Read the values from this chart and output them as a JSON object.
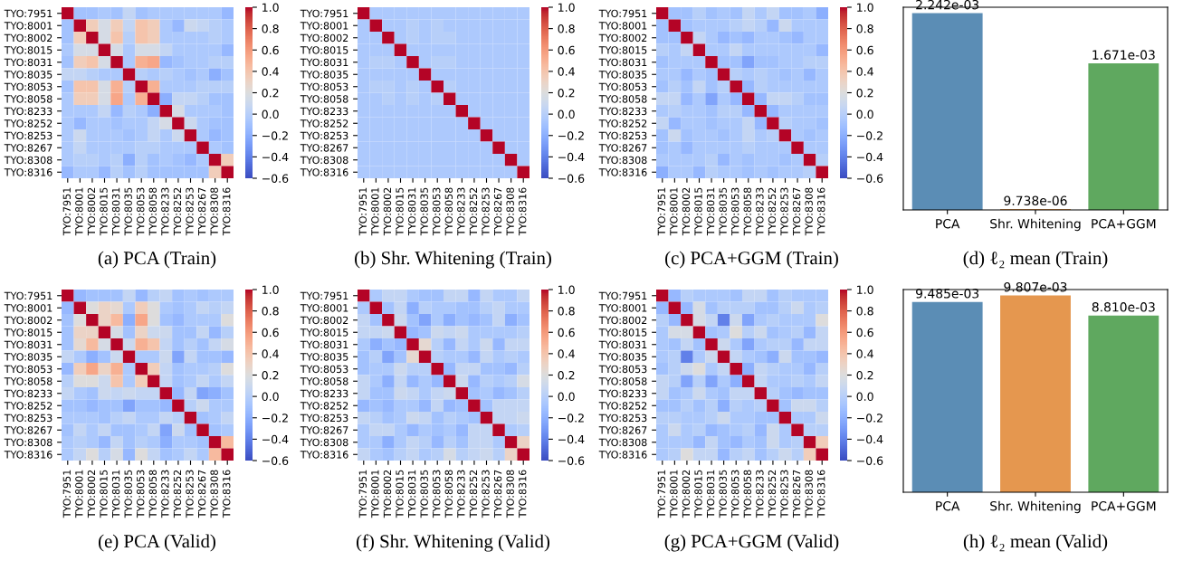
{
  "chart_data": [
    {
      "type": "heatmap",
      "title": "(a) PCA (Train)",
      "categories": [
        "TYO:7951",
        "TYO:8001",
        "TYO:8002",
        "TYO:8015",
        "TYO:8031",
        "TYO:8035",
        "TYO:8053",
        "TYO:8058",
        "TYO:8233",
        "TYO:8252",
        "TYO:8253",
        "TYO:8267",
        "TYO:8308",
        "TYO:8316"
      ],
      "y_categories": [
        "TYO:7951",
        "TYO:8001",
        "TYO:8002",
        "TYO:8015",
        "TYO:8031",
        "TYO:8035",
        "TYO:8053",
        "TYO:8058",
        "TYO:8233",
        "TYO:8252",
        "TYO:8253",
        "TYO:8267",
        "TYO:8308",
        "TYO:8316"
      ],
      "clim": [
        -0.6,
        1
      ],
      "cticks": [
        {
          "value": -0.6,
          "label": "−0.6"
        },
        {
          "value": -0.4,
          "label": "−0.4"
        },
        {
          "value": -0.2,
          "label": "−0.2"
        },
        {
          "value": 0,
          "label": "0.0"
        },
        0.2,
        0.4,
        0.6,
        0.8,
        {
          "value": 1,
          "label": "1.0"
        }
      ],
      "cells": [
        [
          1,
          -0.1,
          -0.1,
          -0.05,
          -0.1,
          0.05,
          -0.1,
          -0.05,
          -0.05,
          -0.05,
          -0.05,
          -0.05,
          -0.05,
          -0.15
        ],
        [
          -0.1,
          1,
          0.35,
          0.15,
          0.35,
          0.05,
          0.4,
          0.35,
          -0.05,
          -0.15,
          0.1,
          0.05,
          0,
          -0.05
        ],
        [
          -0.1,
          0.35,
          1,
          0.15,
          0.4,
          0,
          0.4,
          0.35,
          -0.05,
          -0.05,
          -0.05,
          -0.05,
          0,
          -0.05
        ],
        [
          -0.05,
          0.15,
          0.15,
          1,
          0.15,
          -0.05,
          0.15,
          0.15,
          0.05,
          -0.05,
          -0.05,
          -0.05,
          -0.05,
          -0.15
        ],
        [
          -0.1,
          0.35,
          0.4,
          0.15,
          1,
          -0.05,
          0.5,
          0.55,
          -0.15,
          -0.1,
          -0.05,
          -0.05,
          0,
          0
        ],
        [
          0.05,
          0.05,
          0,
          -0.05,
          -0.05,
          1,
          0,
          -0.05,
          0,
          -0.05,
          -0.1,
          -0.05,
          -0.2,
          -0.1
        ],
        [
          -0.1,
          0.4,
          0.4,
          0.15,
          0.5,
          0,
          1,
          0.5,
          -0.05,
          -0.05,
          -0.05,
          0,
          0,
          0
        ],
        [
          -0.05,
          0.35,
          0.35,
          0.15,
          0.55,
          -0.05,
          0.5,
          1,
          -0.2,
          0.05,
          0.05,
          0,
          -0.1,
          -0.1
        ],
        [
          -0.05,
          -0.05,
          -0.05,
          0.05,
          -0.15,
          0,
          -0.05,
          -0.2,
          1,
          0.15,
          -0.05,
          -0.05,
          -0.05,
          -0.1
        ],
        [
          -0.05,
          -0.15,
          -0.05,
          -0.05,
          -0.1,
          -0.05,
          -0.05,
          0.05,
          0.15,
          1,
          0.1,
          -0.05,
          -0.1,
          -0.1
        ],
        [
          -0.05,
          0.1,
          -0.05,
          -0.05,
          -0.05,
          -0.1,
          -0.05,
          0.05,
          -0.05,
          0.1,
          1,
          -0.05,
          -0.15,
          -0.1
        ],
        [
          -0.05,
          0.05,
          -0.05,
          -0.05,
          -0.05,
          -0.05,
          0,
          0,
          -0.05,
          -0.05,
          -0.05,
          1,
          -0.05,
          -0.1
        ],
        [
          -0.05,
          0,
          0,
          -0.05,
          0,
          -0.2,
          0,
          -0.1,
          -0.05,
          -0.1,
          -0.15,
          -0.05,
          1,
          0.35
        ],
        [
          -0.15,
          -0.05,
          -0.05,
          -0.15,
          0,
          -0.1,
          0,
          -0.1,
          -0.1,
          -0.1,
          -0.1,
          -0.1,
          0.35,
          1
        ]
      ]
    },
    {
      "type": "heatmap",
      "title": "(b) Shr. Whitening (Train)",
      "categories": [
        "TYO:7951",
        "TYO:8001",
        "TYO:8002",
        "TYO:8015",
        "TYO:8031",
        "TYO:8035",
        "TYO:8053",
        "TYO:8058",
        "TYO:8233",
        "TYO:8252",
        "TYO:8253",
        "TYO:8267",
        "TYO:8308",
        "TYO:8316"
      ],
      "y_categories": [
        "TYO:7951",
        "TYO:8001",
        "TYO:8002",
        "TYO:8015",
        "TYO:8031",
        "TYO:8035",
        "TYO:8053",
        "TYO:8058",
        "TYO:8233",
        "TYO:8252",
        "TYO:8253",
        "TYO:8267",
        "TYO:8308",
        "TYO:8316"
      ],
      "clim": [
        -0.6,
        1
      ],
      "cticks": [
        {
          "value": -0.6,
          "label": "−0.6"
        },
        {
          "value": -0.4,
          "label": "−0.4"
        },
        {
          "value": -0.2,
          "label": "−0.2"
        },
        {
          "value": 0,
          "label": "0.0"
        },
        0.2,
        0.4,
        0.6,
        0.8,
        {
          "value": 1,
          "label": "1.0"
        }
      ],
      "cells": [
        [
          1,
          -0.05,
          -0.05,
          -0.05,
          -0.05,
          -0.05,
          -0.05,
          -0.05,
          -0.05,
          -0.05,
          -0.05,
          -0.05,
          -0.05,
          -0.05
        ],
        [
          -0.05,
          1,
          -0.05,
          -0.05,
          0,
          -0.05,
          0,
          -0.05,
          -0.05,
          -0.05,
          -0.05,
          -0.05,
          -0.05,
          -0.05
        ],
        [
          -0.05,
          -0.05,
          1,
          -0.05,
          0,
          -0.05,
          0,
          0,
          -0.05,
          -0.05,
          -0.05,
          -0.05,
          -0.05,
          -0.05
        ],
        [
          -0.05,
          -0.05,
          -0.05,
          1,
          -0.05,
          -0.05,
          -0.05,
          -0.05,
          -0.05,
          -0.05,
          -0.05,
          -0.05,
          -0.05,
          -0.05
        ],
        [
          -0.05,
          0,
          0,
          -0.05,
          1,
          -0.05,
          0,
          0,
          -0.05,
          -0.05,
          -0.05,
          -0.05,
          -0.05,
          -0.05
        ],
        [
          -0.05,
          -0.05,
          -0.05,
          -0.05,
          -0.05,
          1,
          -0.05,
          -0.05,
          -0.05,
          -0.05,
          -0.05,
          -0.05,
          -0.05,
          -0.05
        ],
        [
          -0.05,
          0,
          0,
          -0.05,
          0,
          -0.05,
          1,
          0,
          -0.05,
          -0.05,
          -0.05,
          -0.05,
          -0.05,
          -0.05
        ],
        [
          -0.05,
          -0.05,
          0,
          -0.05,
          0,
          -0.05,
          0,
          1,
          -0.05,
          -0.05,
          -0.05,
          -0.05,
          -0.05,
          -0.05
        ],
        [
          -0.05,
          -0.05,
          -0.05,
          -0.05,
          -0.05,
          -0.05,
          -0.05,
          -0.05,
          1,
          -0.05,
          -0.05,
          -0.05,
          -0.05,
          -0.05
        ],
        [
          -0.05,
          -0.05,
          -0.05,
          -0.05,
          -0.05,
          -0.05,
          -0.05,
          -0.05,
          -0.05,
          1,
          -0.05,
          -0.05,
          -0.05,
          -0.05
        ],
        [
          -0.05,
          -0.05,
          -0.05,
          -0.05,
          -0.05,
          -0.05,
          -0.05,
          -0.05,
          -0.05,
          -0.05,
          1,
          -0.05,
          -0.05,
          -0.05
        ],
        [
          -0.05,
          -0.05,
          -0.05,
          -0.05,
          -0.05,
          -0.05,
          -0.05,
          -0.05,
          -0.05,
          -0.05,
          -0.05,
          1,
          -0.05,
          -0.05
        ],
        [
          -0.05,
          -0.05,
          -0.05,
          -0.05,
          -0.05,
          -0.05,
          -0.05,
          -0.05,
          -0.05,
          -0.05,
          -0.05,
          -0.05,
          1,
          -0.05
        ],
        [
          -0.05,
          -0.05,
          -0.05,
          -0.05,
          -0.05,
          -0.05,
          -0.05,
          -0.05,
          -0.05,
          -0.05,
          -0.05,
          -0.05,
          -0.05,
          1
        ]
      ]
    },
    {
      "type": "heatmap",
      "title": "(c) PCA+GGM (Train)",
      "categories": [
        "TYO:7951",
        "TYO:8001",
        "TYO:8002",
        "TYO:8015",
        "TYO:8031",
        "TYO:8035",
        "TYO:8053",
        "TYO:8058",
        "TYO:8233",
        "TYO:8252",
        "TYO:8253",
        "TYO:8267",
        "TYO:8308",
        "TYO:8316"
      ],
      "y_categories": [
        "TYO:7951",
        "TYO:8001",
        "TYO:8002",
        "TYO:8015",
        "TYO:8031",
        "TYO:8035",
        "TYO:8053",
        "TYO:8058",
        "TYO:8233",
        "TYO:8252",
        "TYO:8253",
        "TYO:8267",
        "TYO:8308",
        "TYO:8316"
      ],
      "clim": [
        -0.6,
        1
      ],
      "cticks": [
        {
          "value": -0.6,
          "label": "−0.6"
        },
        {
          "value": -0.4,
          "label": "−0.4"
        },
        {
          "value": -0.2,
          "label": "−0.2"
        },
        {
          "value": 0,
          "label": "0.0"
        },
        0.2,
        0.4,
        0.6,
        0.8,
        {
          "value": 1,
          "label": "1.0"
        }
      ],
      "cells": [
        [
          1,
          -0.1,
          -0.1,
          0,
          -0.1,
          -0.05,
          -0.1,
          0.05,
          -0.05,
          0.05,
          -0.1,
          -0.1,
          -0.05,
          -0.2
        ],
        [
          -0.1,
          1,
          -0.1,
          -0.05,
          -0.05,
          -0.05,
          0,
          0.05,
          0,
          -0.15,
          0.1,
          -0.05,
          -0.05,
          -0.05
        ],
        [
          -0.1,
          -0.1,
          1,
          0.05,
          -0.05,
          -0.15,
          -0.1,
          -0.15,
          -0.05,
          -0.05,
          -0.1,
          -0.15,
          -0.05,
          -0.05
        ],
        [
          0,
          -0.05,
          0.05,
          1,
          -0.05,
          -0.05,
          0.05,
          -0.05,
          -0.05,
          -0.05,
          -0.05,
          -0.05,
          -0.05,
          -0.15
        ],
        [
          -0.1,
          -0.05,
          -0.05,
          -0.05,
          1,
          -0.1,
          -0.1,
          -0.25,
          -0.1,
          -0.1,
          -0.05,
          -0.05,
          0,
          0
        ],
        [
          -0.05,
          -0.05,
          -0.15,
          -0.05,
          -0.1,
          1,
          0,
          -0.05,
          0,
          -0.05,
          -0.1,
          -0.05,
          -0.15,
          -0.05
        ],
        [
          -0.1,
          0,
          -0.1,
          0.05,
          -0.1,
          0,
          1,
          -0.15,
          0,
          -0.05,
          -0.05,
          -0.05,
          -0.05,
          -0.05
        ],
        [
          0.05,
          0.05,
          -0.15,
          -0.05,
          -0.25,
          -0.05,
          -0.15,
          1,
          -0.15,
          0.05,
          0.05,
          0,
          -0.1,
          -0.1
        ],
        [
          -0.05,
          0,
          -0.05,
          -0.05,
          -0.1,
          0,
          0,
          -0.15,
          1,
          -0.15,
          -0.05,
          -0.05,
          -0.05,
          -0.05
        ],
        [
          0.05,
          -0.15,
          -0.05,
          -0.05,
          -0.1,
          -0.05,
          -0.05,
          0.05,
          -0.15,
          1,
          0,
          -0.05,
          -0.05,
          -0.1
        ],
        [
          -0.1,
          0.1,
          -0.1,
          -0.05,
          -0.05,
          -0.1,
          -0.05,
          0.05,
          -0.05,
          0,
          1,
          -0.05,
          -0.1,
          -0.05
        ],
        [
          -0.1,
          -0.05,
          -0.15,
          -0.05,
          -0.05,
          -0.05,
          -0.05,
          0,
          -0.05,
          -0.05,
          -0.05,
          1,
          -0.05,
          -0.05
        ],
        [
          -0.05,
          -0.05,
          -0.05,
          -0.05,
          0,
          -0.15,
          -0.05,
          -0.1,
          -0.05,
          -0.05,
          -0.1,
          -0.05,
          1,
          0
        ],
        [
          -0.2,
          -0.05,
          -0.05,
          -0.15,
          0,
          -0.05,
          -0.05,
          -0.1,
          -0.05,
          -0.1,
          -0.05,
          -0.05,
          0,
          1
        ]
      ]
    },
    {
      "type": "bar",
      "title": "(d) ℓ₂ mean (Train)",
      "categories": [
        "PCA",
        "Shr. Whitening",
        "PCA+GGM"
      ],
      "values": [
        0.002242,
        9.738e-06,
        0.001671
      ],
      "value_labels": [
        "2.242e-03",
        "9.738e-06",
        "1.671e-03"
      ],
      "colors": [
        "#5b8db5",
        "#e5974f",
        "#5fa85f"
      ]
    },
    {
      "type": "heatmap",
      "title": "(e) PCA (Valid)",
      "categories": [
        "TYO:7951",
        "TYO:8001",
        "TYO:8002",
        "TYO:8015",
        "TYO:8031",
        "TYO:8035",
        "TYO:8053",
        "TYO:8058",
        "TYO:8233",
        "TYO:8252",
        "TYO:8253",
        "TYO:8267",
        "TYO:8308",
        "TYO:8316"
      ],
      "y_categories": [
        "TYO:7951",
        "TYO:8001",
        "TYO:8002",
        "TYO:8015",
        "TYO:8031",
        "TYO:8035",
        "TYO:8053",
        "TYO:8058",
        "TYO:8233",
        "TYO:8252",
        "TYO:8253",
        "TYO:8267",
        "TYO:8308",
        "TYO:8316"
      ],
      "clim": [
        -0.6,
        1
      ],
      "cticks": [
        {
          "value": -0.6,
          "label": "−0.6"
        },
        {
          "value": -0.4,
          "label": "−0.4"
        },
        {
          "value": -0.2,
          "label": "−0.2"
        },
        {
          "value": 0,
          "label": "0.0"
        },
        0.2,
        0.4,
        0.6,
        0.8,
        {
          "value": 1,
          "label": "1.0"
        }
      ],
      "cells": [
        [
          1,
          -0.15,
          -0.1,
          -0.1,
          -0.1,
          0.05,
          -0.15,
          0,
          0.05,
          -0.1,
          -0.05,
          -0.1,
          -0.05,
          -0.05
        ],
        [
          -0.15,
          1,
          0.2,
          0.3,
          0.25,
          -0.05,
          0.35,
          0.2,
          -0.05,
          -0.1,
          -0.05,
          0.05,
          0,
          0.05
        ],
        [
          -0.1,
          0.2,
          1,
          0.3,
          0.45,
          -0.2,
          0.55,
          0.2,
          -0.1,
          -0.15,
          -0.05,
          -0.05,
          -0.05,
          0.2
        ],
        [
          -0.1,
          0.3,
          0.3,
          1,
          0.15,
          -0.1,
          0.3,
          0.1,
          0.1,
          -0.1,
          -0.1,
          0.05,
          -0.15,
          0
        ],
        [
          -0.1,
          0.25,
          0.45,
          0.15,
          1,
          0.1,
          0.5,
          0.4,
          0.05,
          -0.1,
          0,
          -0.1,
          0.05,
          0.15
        ],
        [
          0.05,
          -0.05,
          -0.2,
          -0.1,
          0.1,
          1,
          -0.05,
          -0.05,
          0.1,
          -0.25,
          0.05,
          -0.1,
          -0.1,
          -0.15
        ],
        [
          -0.15,
          0.35,
          0.55,
          0.3,
          0.5,
          -0.05,
          1,
          0.35,
          0.05,
          -0.1,
          -0.05,
          -0.05,
          0,
          0.2
        ],
        [
          0,
          0.2,
          0.2,
          0.1,
          0.4,
          -0.05,
          0.35,
          1,
          0.05,
          -0.1,
          -0.05,
          0.05,
          -0.05,
          0.05
        ],
        [
          0.05,
          -0.05,
          -0.1,
          0.1,
          0.05,
          0.1,
          0.05,
          0.05,
          1,
          -0.15,
          0.05,
          -0.25,
          -0.2,
          -0.1
        ],
        [
          -0.1,
          -0.1,
          -0.15,
          -0.1,
          -0.1,
          -0.25,
          -0.1,
          -0.1,
          -0.15,
          1,
          0,
          0.1,
          -0.05,
          -0.05
        ],
        [
          -0.05,
          -0.05,
          -0.05,
          -0.1,
          0,
          0.05,
          -0.05,
          -0.05,
          0.05,
          0,
          1,
          -0.1,
          -0.05,
          0.05
        ],
        [
          -0.1,
          0.05,
          -0.05,
          0.05,
          -0.1,
          -0.1,
          -0.05,
          0.05,
          -0.25,
          0.1,
          -0.1,
          1,
          -0.1,
          -0.05
        ],
        [
          -0.05,
          0,
          -0.05,
          -0.15,
          0.05,
          -0.1,
          0,
          -0.05,
          -0.2,
          -0.05,
          -0.05,
          -0.1,
          1,
          0.45
        ],
        [
          -0.05,
          0.05,
          0.2,
          0,
          0.15,
          -0.15,
          0.2,
          0.05,
          -0.1,
          -0.05,
          0.05,
          -0.05,
          0.45,
          1
        ]
      ]
    },
    {
      "type": "heatmap",
      "title": "(f) Shr. Whitening (Valid)",
      "categories": [
        "TYO:7951",
        "TYO:8001",
        "TYO:8002",
        "TYO:8015",
        "TYO:8031",
        "TYO:8035",
        "TYO:8053",
        "TYO:8058",
        "TYO:8233",
        "TYO:8252",
        "TYO:8253",
        "TYO:8267",
        "TYO:8308",
        "TYO:8316"
      ],
      "y_categories": [
        "TYO:7951",
        "TYO:8001",
        "TYO:8002",
        "TYO:8015",
        "TYO:8031",
        "TYO:8035",
        "TYO:8053",
        "TYO:8058",
        "TYO:8233",
        "TYO:8252",
        "TYO:8253",
        "TYO:8267",
        "TYO:8308",
        "TYO:8316"
      ],
      "clim": [
        -0.6,
        1
      ],
      "cticks": [
        {
          "value": -0.6,
          "label": "−0.6"
        },
        {
          "value": -0.4,
          "label": "−0.4"
        },
        {
          "value": -0.2,
          "label": "−0.2"
        },
        {
          "value": 0,
          "label": "0.0"
        },
        0.2,
        0.4,
        0.6,
        0.8,
        {
          "value": 1,
          "label": "1.0"
        }
      ],
      "cells": [
        [
          1,
          -0.05,
          0.05,
          0.05,
          -0.05,
          -0.1,
          -0.1,
          0.05,
          0.05,
          -0.15,
          0.05,
          -0.05,
          -0.05,
          0.05
        ],
        [
          -0.05,
          1,
          -0.1,
          0.05,
          -0.2,
          0,
          -0.05,
          -0.05,
          -0.1,
          -0.1,
          0,
          0.05,
          -0.05,
          -0.05
        ],
        [
          0.05,
          -0.1,
          1,
          0.1,
          -0.1,
          -0.25,
          -0.05,
          -0.2,
          -0.1,
          -0.15,
          -0.1,
          0.05,
          -0.2,
          -0.1
        ],
        [
          0.05,
          0.05,
          0.1,
          1,
          -0.15,
          -0.1,
          0.1,
          0.05,
          0.1,
          -0.05,
          -0.05,
          -0.05,
          -0.05,
          0
        ],
        [
          -0.05,
          -0.2,
          -0.1,
          -0.15,
          1,
          0.25,
          0,
          -0.15,
          0.05,
          -0.05,
          0.1,
          -0.15,
          0.05,
          0.05
        ],
        [
          -0.1,
          0,
          -0.25,
          -0.1,
          0.25,
          1,
          0,
          -0.05,
          -0.05,
          -0.15,
          0.05,
          -0.05,
          0,
          -0.05
        ],
        [
          -0.1,
          -0.05,
          -0.05,
          0.1,
          0,
          0,
          1,
          -0.15,
          0.05,
          0.05,
          -0.1,
          -0.1,
          -0.15,
          0
        ],
        [
          0.05,
          -0.05,
          -0.2,
          0.05,
          -0.15,
          -0.05,
          -0.15,
          1,
          0.1,
          -0.15,
          0,
          -0.05,
          0,
          0.15
        ],
        [
          0.05,
          -0.1,
          -0.1,
          0.1,
          0.05,
          -0.05,
          0.05,
          0.1,
          1,
          -0.1,
          -0.05,
          -0.15,
          -0.1,
          0
        ],
        [
          -0.15,
          -0.1,
          -0.15,
          -0.05,
          -0.05,
          -0.15,
          0.05,
          -0.15,
          -0.1,
          1,
          -0.1,
          0.05,
          0.05,
          0.05
        ],
        [
          0.05,
          0,
          -0.1,
          -0.05,
          0.1,
          0.05,
          -0.1,
          0,
          -0.05,
          -0.1,
          1,
          0.05,
          0.05,
          0.1
        ],
        [
          -0.05,
          0.05,
          0.05,
          -0.05,
          -0.15,
          -0.05,
          -0.1,
          -0.05,
          -0.15,
          0.05,
          0.05,
          1,
          -0.05,
          0
        ],
        [
          -0.05,
          -0.05,
          -0.2,
          -0.05,
          0.05,
          0,
          -0.15,
          0,
          -0.1,
          0.05,
          0.05,
          -0.05,
          1,
          0.3
        ],
        [
          0.05,
          -0.05,
          -0.1,
          0,
          0.05,
          -0.05,
          0,
          0.15,
          0,
          0.05,
          0.1,
          0,
          0.3,
          1
        ]
      ]
    },
    {
      "type": "heatmap",
      "title": "(g) PCA+GGM (Valid)",
      "categories": [
        "TYO:7951",
        "TYO:8001",
        "TYO:8002",
        "TYO:8015",
        "TYO:8031",
        "TYO:8035",
        "TYO:8053",
        "TYO:8058",
        "TYO:8233",
        "TYO:8252",
        "TYO:8253",
        "TYO:8267",
        "TYO:8308",
        "TYO:8316"
      ],
      "y_categories": [
        "TYO:7951",
        "TYO:8001",
        "TYO:8002",
        "TYO:8015",
        "TYO:8031",
        "TYO:8035",
        "TYO:8053",
        "TYO:8058",
        "TYO:8233",
        "TYO:8252",
        "TYO:8253",
        "TYO:8267",
        "TYO:8308",
        "TYO:8316"
      ],
      "clim": [
        -0.6,
        1
      ],
      "cticks": [
        {
          "value": -0.6,
          "label": "−0.6"
        },
        {
          "value": -0.4,
          "label": "−0.4"
        },
        {
          "value": -0.2,
          "label": "−0.2"
        },
        {
          "value": 0,
          "label": "0.0"
        },
        0.2,
        0.4,
        0.6,
        0.8,
        {
          "value": 1,
          "label": "1.0"
        }
      ],
      "cells": [
        [
          1,
          -0.15,
          0,
          -0.05,
          -0.05,
          -0.05,
          -0.1,
          0.05,
          0.05,
          -0.1,
          0,
          -0.05,
          -0.05,
          -0.05
        ],
        [
          -0.15,
          1,
          -0.15,
          0.15,
          -0.1,
          0,
          0,
          0,
          -0.1,
          -0.1,
          0,
          0.1,
          -0.05,
          0
        ],
        [
          0,
          -0.15,
          1,
          0.15,
          0.05,
          -0.4,
          0.1,
          -0.25,
          -0.05,
          0,
          -0.05,
          -0.05,
          -0.05,
          0.2
        ],
        [
          -0.05,
          0.15,
          0.15,
          1,
          -0.1,
          -0.05,
          0.2,
          0,
          0.1,
          -0.1,
          -0.05,
          0,
          -0.15,
          0.05
        ],
        [
          -0.05,
          -0.1,
          0.05,
          -0.1,
          1,
          0.1,
          -0.05,
          -0.25,
          -0.05,
          0,
          0,
          -0.15,
          0.05,
          0.05
        ],
        [
          -0.05,
          0,
          -0.4,
          -0.05,
          0.1,
          1,
          0.05,
          -0.05,
          -0.1,
          -0.2,
          0.1,
          -0.1,
          -0.1,
          -0.15
        ],
        [
          -0.1,
          0,
          0.1,
          0.2,
          -0.05,
          0.05,
          1,
          -0.2,
          0.05,
          0,
          -0.05,
          -0.05,
          -0.15,
          0
        ],
        [
          0.05,
          0,
          -0.25,
          0,
          -0.25,
          -0.05,
          -0.2,
          1,
          0.05,
          -0.05,
          -0.05,
          0,
          -0.05,
          0.05
        ],
        [
          0.05,
          -0.1,
          -0.05,
          0.1,
          -0.05,
          -0.1,
          0.05,
          0.05,
          1,
          0,
          -0.1,
          -0.15,
          -0.1,
          -0.1
        ],
        [
          -0.1,
          -0.1,
          0,
          -0.1,
          0,
          -0.2,
          0,
          -0.05,
          0,
          1,
          -0.1,
          0.1,
          0.1,
          0
        ],
        [
          0,
          0,
          -0.05,
          -0.05,
          0,
          0.1,
          -0.05,
          -0.05,
          -0.1,
          -0.1,
          1,
          -0.05,
          -0.05,
          0.1
        ],
        [
          -0.05,
          0.1,
          -0.05,
          0,
          -0.15,
          -0.1,
          -0.05,
          0,
          -0.15,
          0.1,
          -0.05,
          1,
          0,
          0
        ],
        [
          -0.05,
          -0.05,
          -0.05,
          -0.15,
          0.05,
          -0.1,
          -0.15,
          -0.05,
          -0.1,
          0.1,
          -0.05,
          0,
          1,
          0.35
        ],
        [
          -0.05,
          0,
          0.2,
          0.05,
          0.05,
          -0.15,
          0,
          0.05,
          -0.1,
          0,
          0.1,
          0,
          0.35,
          1
        ]
      ]
    },
    {
      "type": "bar",
      "title": "(h) ℓ₂ mean (Valid)",
      "categories": [
        "PCA",
        "Shr. Whitening",
        "PCA+GGM"
      ],
      "values": [
        0.009485,
        0.009807,
        0.00881
      ],
      "value_labels": [
        "9.485e-03",
        "9.807e-03",
        "8.810e-03"
      ],
      "colors": [
        "#5b8db5",
        "#e5974f",
        "#5fa85f"
      ]
    }
  ]
}
